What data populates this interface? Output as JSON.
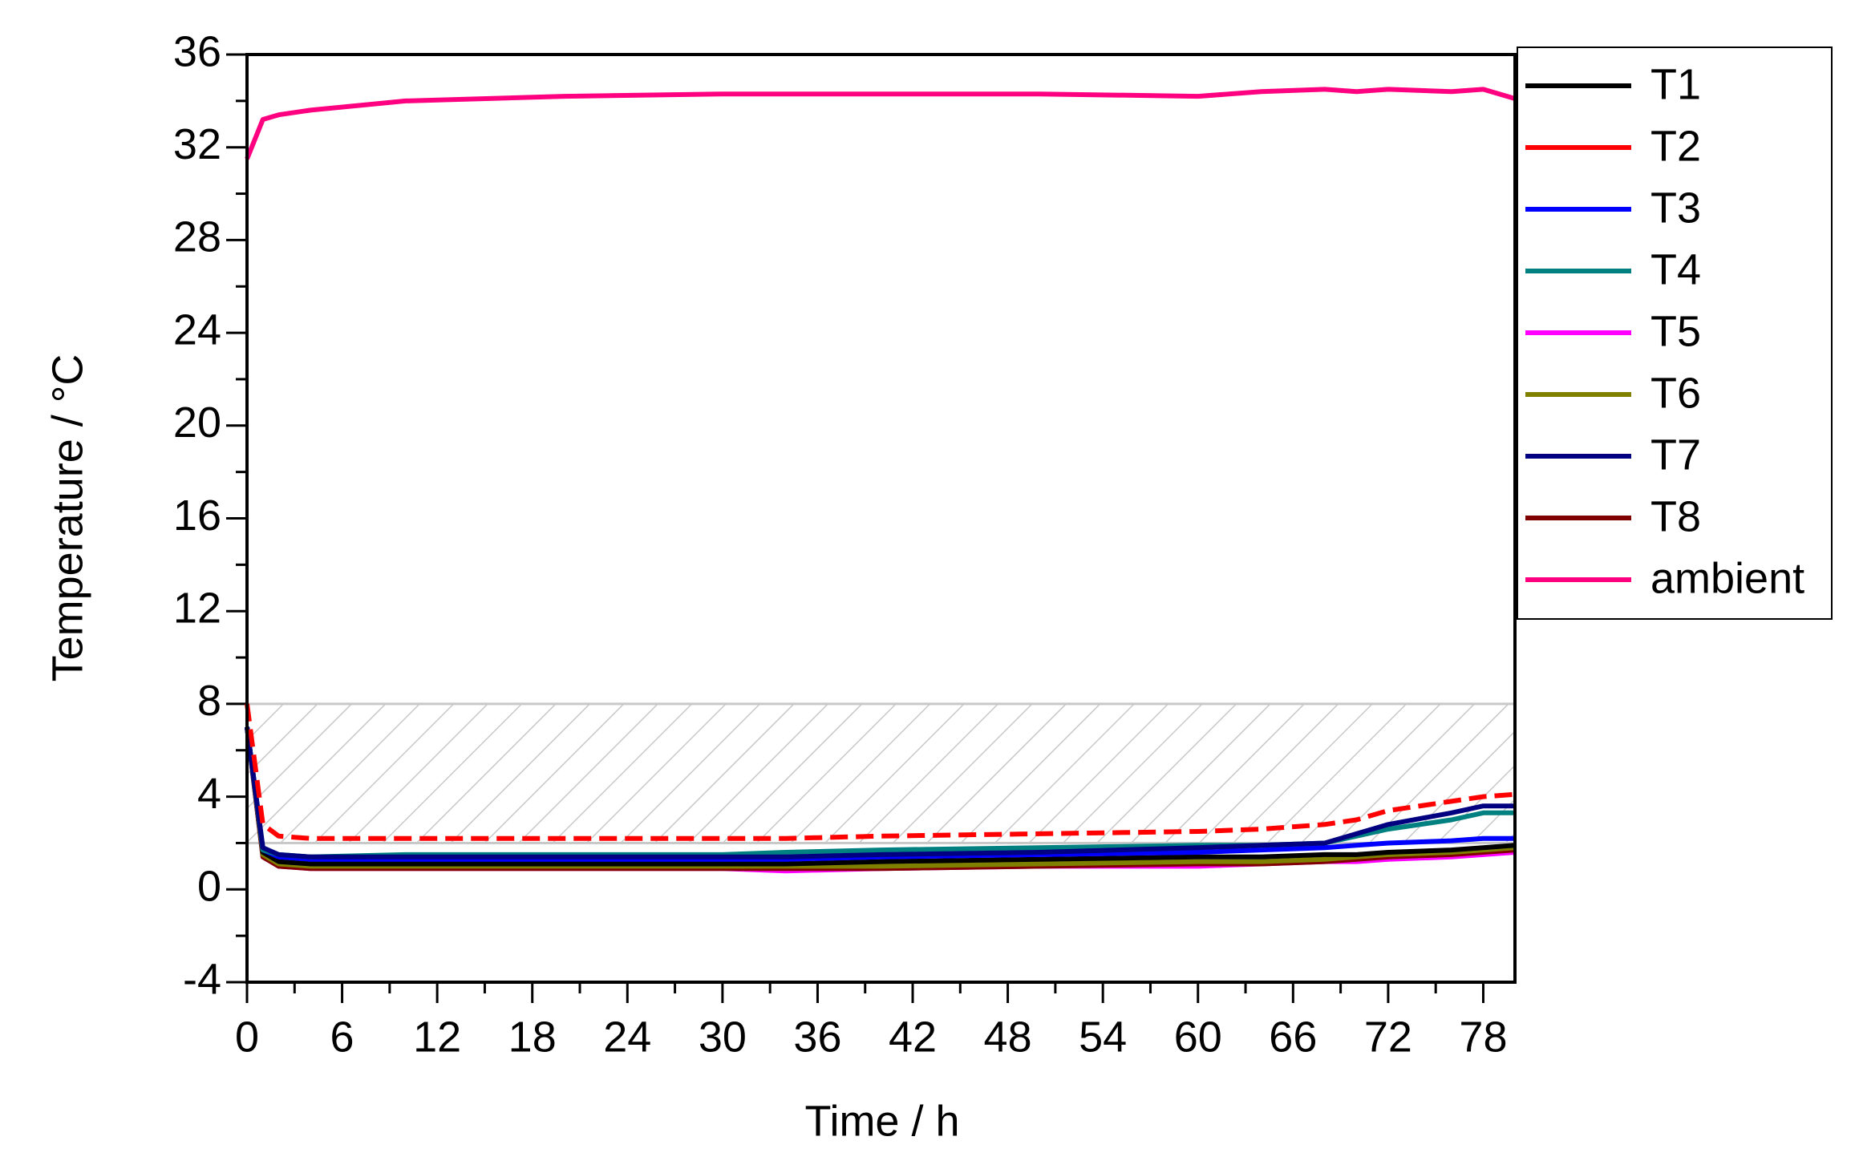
{
  "chart_data": {
    "type": "line",
    "xlabel": "Time / h",
    "ylabel": "Temperature / °C",
    "x": [
      0,
      1,
      2,
      4,
      10,
      20,
      30,
      34,
      40,
      50,
      60,
      64,
      68,
      70,
      72,
      76,
      78,
      80
    ],
    "xlim": [
      0,
      80
    ],
    "xticks": [
      0,
      6,
      12,
      18,
      24,
      30,
      36,
      42,
      48,
      54,
      60,
      66,
      72,
      78
    ],
    "ylim": [
      -4,
      36
    ],
    "yticks": [
      -4,
      0,
      4,
      8,
      12,
      16,
      20,
      24,
      28,
      32,
      36
    ],
    "shaded_range": [
      2,
      8
    ],
    "legend": "outside-right",
    "series": [
      {
        "name": "ambient",
        "color": "#ff0080",
        "values": [
          31.5,
          33.2,
          33.4,
          33.6,
          34.0,
          34.2,
          34.3,
          34.3,
          34.3,
          34.3,
          34.2,
          34.4,
          34.5,
          34.4,
          34.5,
          34.4,
          34.5,
          34.1
        ]
      },
      {
        "name": "T5",
        "color": "#ff00ff",
        "values": [
          7,
          1.4,
          1.0,
          0.9,
          0.9,
          0.9,
          0.9,
          0.8,
          0.9,
          1.0,
          1.0,
          1.1,
          1.2,
          1.2,
          1.3,
          1.4,
          1.5,
          1.6
        ]
      },
      {
        "name": "T8",
        "color": "#800000",
        "values": [
          7,
          1.4,
          1.0,
          0.9,
          0.9,
          0.9,
          0.9,
          0.9,
          0.9,
          1.0,
          1.1,
          1.1,
          1.2,
          1.3,
          1.4,
          1.5,
          1.6,
          1.7
        ]
      },
      {
        "name": "T6",
        "color": "#808000",
        "values": [
          7,
          1.5,
          1.1,
          1.0,
          1.0,
          1.0,
          1.0,
          1.0,
          1.0,
          1.1,
          1.2,
          1.2,
          1.3,
          1.4,
          1.5,
          1.6,
          1.7,
          1.8
        ]
      },
      {
        "name": "T1",
        "color": "#000000",
        "values": [
          7,
          1.6,
          1.2,
          1.1,
          1.1,
          1.1,
          1.1,
          1.1,
          1.2,
          1.3,
          1.4,
          1.4,
          1.5,
          1.5,
          1.6,
          1.7,
          1.8,
          1.9
        ]
      },
      {
        "name": "T3",
        "color": "#0000ff",
        "values": [
          7,
          1.7,
          1.4,
          1.3,
          1.3,
          1.3,
          1.3,
          1.3,
          1.4,
          1.5,
          1.6,
          1.7,
          1.8,
          1.9,
          2.0,
          2.1,
          2.2,
          2.2
        ]
      },
      {
        "name": "T4",
        "color": "#008080",
        "values": [
          7,
          1.7,
          1.5,
          1.4,
          1.5,
          1.5,
          1.5,
          1.6,
          1.7,
          1.8,
          1.9,
          1.9,
          2.0,
          2.3,
          2.6,
          3.0,
          3.3,
          3.3
        ]
      },
      {
        "name": "T7",
        "color": "#000080",
        "values": [
          7,
          1.8,
          1.5,
          1.4,
          1.4,
          1.4,
          1.4,
          1.4,
          1.5,
          1.6,
          1.8,
          1.9,
          2.0,
          2.4,
          2.8,
          3.3,
          3.6,
          3.6
        ]
      },
      {
        "name": "T2",
        "color": "#ff0000",
        "dashed": true,
        "values": [
          8,
          2.8,
          2.3,
          2.2,
          2.2,
          2.2,
          2.2,
          2.2,
          2.3,
          2.4,
          2.5,
          2.6,
          2.8,
          3.0,
          3.4,
          3.8,
          4.0,
          4.1
        ]
      }
    ],
    "legend_order": [
      "T1",
      "T2",
      "T3",
      "T4",
      "T5",
      "T6",
      "T7",
      "T8",
      "ambient"
    ]
  }
}
